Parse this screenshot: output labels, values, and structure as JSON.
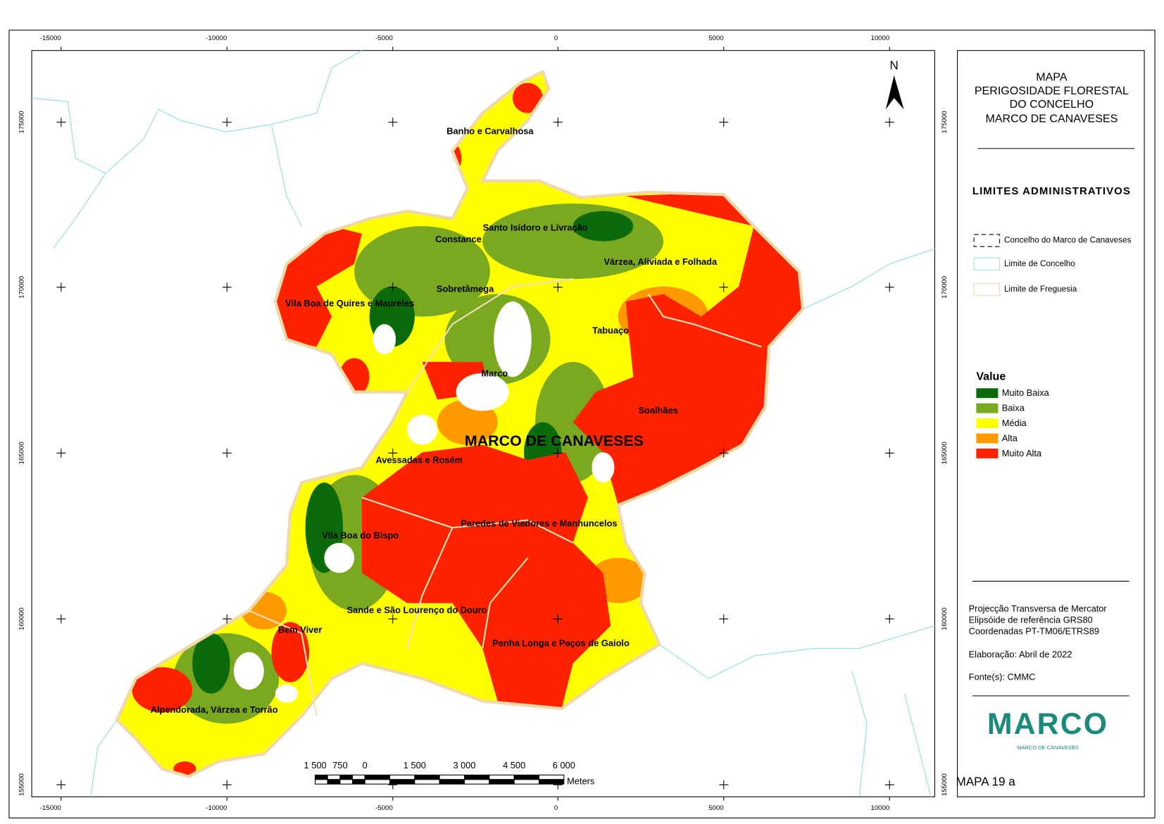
{
  "map": {
    "north": "N",
    "main_label": "MARCO DE CANAVESES",
    "grid": {
      "x_labels": [
        "-15000",
        "-10000",
        "-5000",
        "0",
        "5000",
        "10000"
      ],
      "y_labels": [
        "175000",
        "170000",
        "165000",
        "160000",
        "155000"
      ]
    },
    "places": [
      "Banho e Carvalhosa",
      "Santo Isidoro e Livração",
      "Constance",
      "Várzea, Aliviada e Folhada",
      "Sobretâmega",
      "Vila Boa de Quires e Maureles",
      "Tabuaço",
      "Marco",
      "Soalhães",
      "Avessadas e Rosém",
      "Paredes de Viadores e Manhuncelos",
      "Vila Boa do Bispo",
      "Sande e São Lourenço do Douro",
      "Bem Viver",
      "Penha Longa e Paços de Gaiolo",
      "Alpendorada, Várzea e Torrão"
    ],
    "scale_bar": {
      "labels": [
        "1 500",
        "750",
        "0",
        "1 500",
        "3 000",
        "4 500",
        "6 000"
      ],
      "unit": "Meters"
    }
  },
  "panel": {
    "title_lines": [
      "MAPA",
      "PERIGOSIDADE FLORESTAL",
      "DO CONCELHO",
      "MARCO DE CANAVESES"
    ],
    "limits_title": "LIMITES ADMINISTRATIVOS",
    "limits": [
      "Concelho do Marco de Canaveses",
      "Limite de Concelho",
      "Limite de Freguesia"
    ],
    "value_title": "Value",
    "classes": [
      {
        "name": "Muito Baixa",
        "color": "#0b6b0b"
      },
      {
        "name": "Baixa",
        "color": "#7aa81e"
      },
      {
        "name": "Média",
        "color": "#ffff00"
      },
      {
        "name": "Alta",
        "color": "#ff9900"
      },
      {
        "name": "Muito Alta",
        "color": "#ff2200"
      }
    ],
    "notes": [
      "Projecção Transversa de Mercator",
      "Elipsóide de referência GRS80",
      "Coordenadas PT-TM06/ETRS89",
      "Elaboração: Abril de 2022",
      "Fonte(s): CMMC"
    ],
    "logo": {
      "name": "MARCO",
      "subtitle": "MARCO DE CANAVESES"
    }
  },
  "map_id": "MAPA 19 a"
}
